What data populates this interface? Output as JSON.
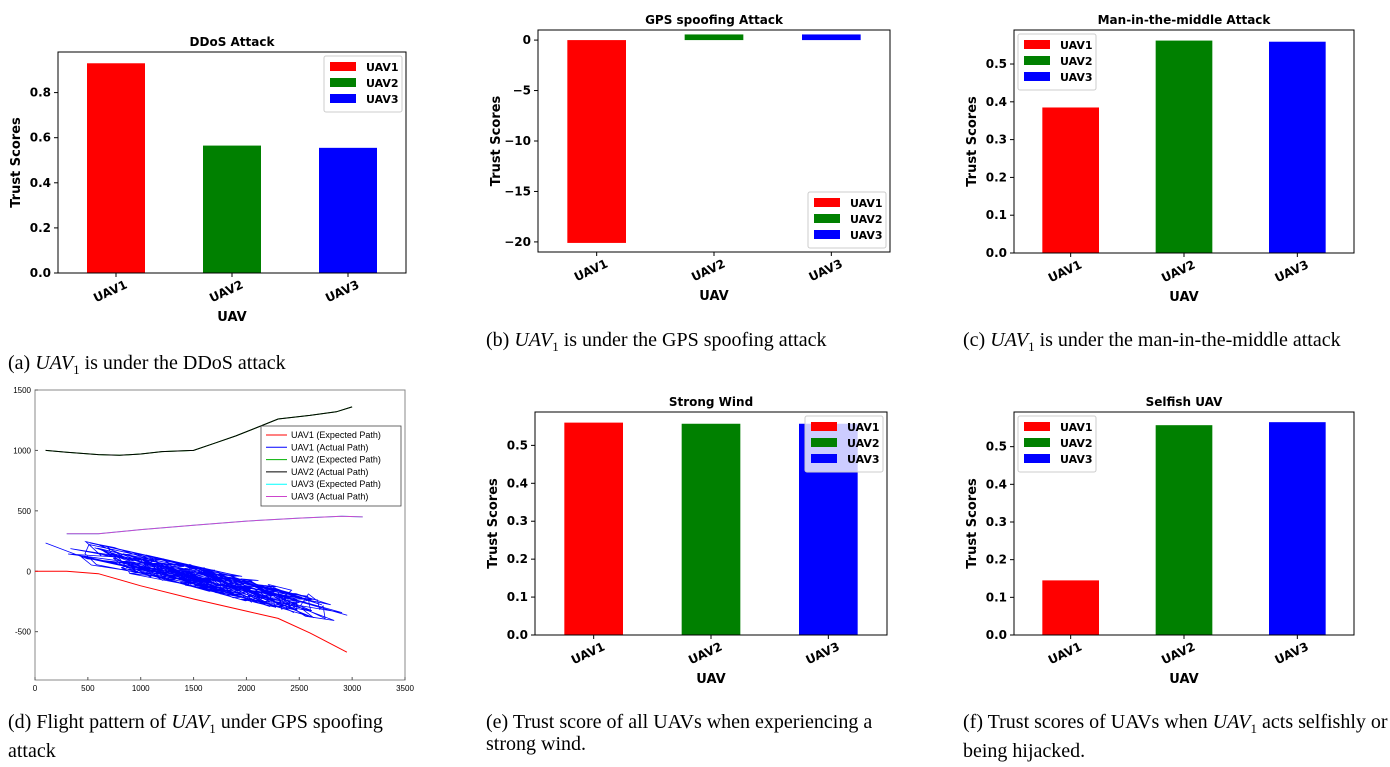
{
  "captions": {
    "a": {
      "pre": "(a) ",
      "var": "UAV",
      "sub": "1",
      "post": " is under the DDoS attack"
    },
    "b": {
      "pre": "(b) ",
      "var": "UAV",
      "sub": "1",
      "post": " is under the GPS spoofing attack"
    },
    "c": {
      "pre": "(c) ",
      "var": "UAV",
      "sub": "1",
      "post": " is under the man-in-the-middle attack"
    },
    "d": {
      "pre": "(d) Flight pattern of ",
      "var": "UAV",
      "sub": "1",
      "post": " under GPS spoofing attack"
    },
    "e": {
      "pre": "",
      "var": "",
      "sub": "",
      "post": "(e) Trust score of all UAVs when experiencing a strong wind."
    },
    "f": {
      "pre": "(f) Trust scores of UAVs when ",
      "var": "UAV",
      "sub": "1",
      "post": " acts selfishly or being hijacked."
    }
  },
  "colors": {
    "UAV1": "#ff0000",
    "UAV2": "#008000",
    "UAV3": "#0000ff"
  },
  "chart_data": [
    {
      "id": "a",
      "type": "bar",
      "title": "DDoS Attack",
      "categories": [
        "UAV1",
        "UAV2",
        "UAV3"
      ],
      "values": [
        0.93,
        0.565,
        0.555
      ],
      "ylabel": "Trust Scores",
      "xlabel": "UAV",
      "ylim": [
        0,
        0.98
      ],
      "yticks": [
        0.0,
        0.2,
        0.4,
        0.6,
        0.8
      ],
      "legend": [
        "UAV1",
        "UAV2",
        "UAV3"
      ],
      "legend_position": "top-right"
    },
    {
      "id": "b",
      "type": "bar",
      "title": "GPS spoofing Attack",
      "categories": [
        "UAV1",
        "UAV2",
        "UAV3"
      ],
      "values": [
        -20.1,
        0.56,
        0.56
      ],
      "ylabel": "Trust Scores",
      "xlabel": "UAV",
      "ylim": [
        -21.0,
        1.0
      ],
      "yticks": [
        0,
        -5,
        -10,
        -15,
        -20
      ],
      "legend": [
        "UAV1",
        "UAV2",
        "UAV3"
      ],
      "legend_position": "bottom-right"
    },
    {
      "id": "c",
      "type": "bar",
      "title": "Man-in-the-middle Attack",
      "categories": [
        "UAV1",
        "UAV2",
        "UAV3"
      ],
      "values": [
        0.385,
        0.562,
        0.559
      ],
      "ylabel": "Trust Scores",
      "xlabel": "UAV",
      "ylim": [
        0,
        0.59
      ],
      "yticks": [
        0.0,
        0.1,
        0.2,
        0.3,
        0.4,
        0.5
      ],
      "legend": [
        "UAV1",
        "UAV2",
        "UAV3"
      ],
      "legend_position": "top-left"
    },
    {
      "id": "d",
      "type": "line",
      "xlim": [
        0,
        3500
      ],
      "ylim": [
        -900,
        1500
      ],
      "xticks": [
        0,
        500,
        1000,
        1500,
        2000,
        2500,
        3000,
        3500
      ],
      "yticks": [
        1500,
        1000,
        500,
        0,
        -500
      ],
      "legend_position": "top-right",
      "series": [
        {
          "name": "UAV1 (Expected Path)",
          "color": "#ff0000",
          "x": [
            0,
            300,
            600,
            1000,
            1500,
            2000,
            2300,
            2600,
            2950
          ],
          "y": [
            0,
            0,
            -20,
            -120,
            -230,
            -330,
            -390,
            -510,
            -670
          ]
        },
        {
          "name": "UAV1 (Actual Path)",
          "color": "#0000ff",
          "noisy": true,
          "x": [
            100,
            300,
            500,
            700,
            900,
            1100,
            1300,
            1500,
            1700,
            1900,
            2100,
            2300,
            2500,
            2700,
            2900,
            3100
          ],
          "y": [
            150,
            190,
            160,
            110,
            80,
            40,
            0,
            -40,
            -80,
            -130,
            -170,
            -230,
            -260,
            -310,
            -370,
            -400
          ]
        },
        {
          "name": "UAV2 (Expected Path)",
          "color": "#00b000",
          "x": [
            100,
            300,
            600,
            800,
            1000,
            1200,
            1500,
            1700,
            1900,
            2100,
            2300,
            2600,
            2850,
            3000
          ],
          "y": [
            1000,
            985,
            965,
            960,
            970,
            990,
            1000,
            1060,
            1120,
            1190,
            1260,
            1290,
            1320,
            1360
          ]
        },
        {
          "name": "UAV2 (Actual Path)",
          "color": "#000000",
          "x": [
            100,
            300,
            600,
            800,
            1000,
            1200,
            1500,
            1700,
            1900,
            2100,
            2300,
            2600,
            2850,
            3000
          ],
          "y": [
            1000,
            985,
            965,
            960,
            970,
            990,
            1000,
            1060,
            1120,
            1190,
            1260,
            1290,
            1320,
            1360
          ]
        },
        {
          "name": "UAV3 (Expected Path)",
          "color": "#00ffff",
          "x": [
            300,
            600,
            1000,
            1500,
            2000,
            2500,
            2900,
            3100
          ],
          "y": [
            310,
            310,
            345,
            380,
            415,
            440,
            455,
            450
          ]
        },
        {
          "name": "UAV3 (Actual Path)",
          "color": "#cc44cc",
          "x": [
            300,
            600,
            1000,
            1500,
            2000,
            2500,
            2900,
            3100
          ],
          "y": [
            310,
            310,
            345,
            380,
            415,
            440,
            455,
            450
          ]
        }
      ]
    },
    {
      "id": "e",
      "type": "bar",
      "title": "Strong Wind",
      "categories": [
        "UAV1",
        "UAV2",
        "UAV3"
      ],
      "values": [
        0.56,
        0.557,
        0.557
      ],
      "ylabel": "Trust Scores",
      "xlabel": "UAV",
      "ylim": [
        0,
        0.588
      ],
      "yticks": [
        0.0,
        0.1,
        0.2,
        0.3,
        0.4,
        0.5
      ],
      "legend": [
        "UAV1",
        "UAV2",
        "UAV3"
      ],
      "legend_position": "top-right"
    },
    {
      "id": "f",
      "type": "bar",
      "title": "Selfish UAV",
      "categories": [
        "UAV1",
        "UAV2",
        "UAV3"
      ],
      "values": [
        0.145,
        0.557,
        0.565
      ],
      "ylabel": "Trust Scores",
      "xlabel": "UAV",
      "ylim": [
        0,
        0.592
      ],
      "yticks": [
        0.0,
        0.1,
        0.2,
        0.3,
        0.4,
        0.5
      ],
      "legend": [
        "UAV1",
        "UAV2",
        "UAV3"
      ],
      "legend_position": "top-left"
    }
  ]
}
